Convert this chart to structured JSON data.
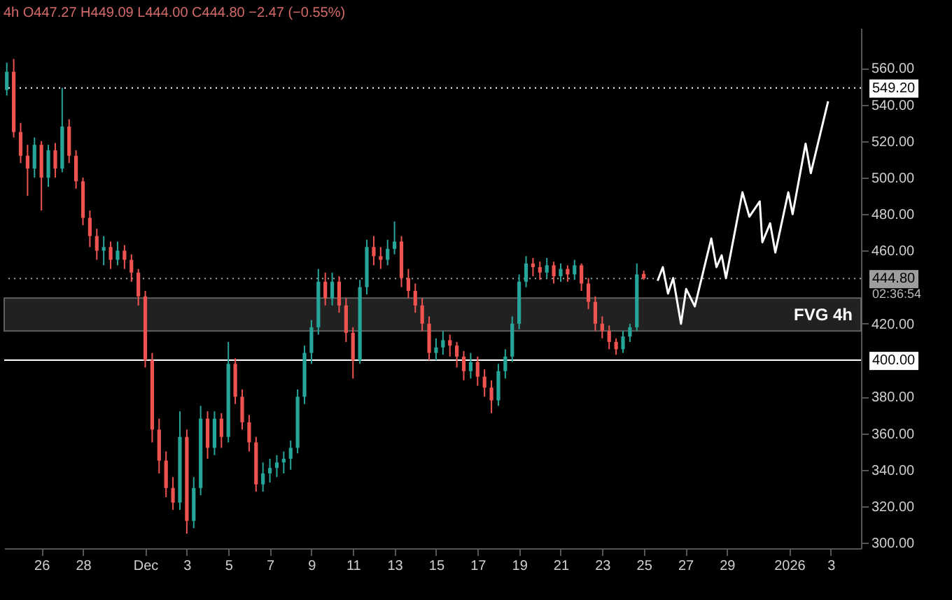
{
  "chart_data": {
    "type": "candlestick",
    "title": "4h O447.27 H449.09 L444.00 C444.80 −2.47 (−0.55%)",
    "x": [
      "2025-11-24T08:00",
      "2025-11-24T16:00",
      "2025-11-25T00:00",
      "2025-11-25T08:00",
      "2025-11-25T16:00",
      "2025-11-26T00:00",
      "2025-11-26T08:00",
      "2025-11-26T16:00",
      "2025-11-27T00:00",
      "2025-11-27T08:00",
      "2025-11-27T16:00",
      "2025-11-28T00:00",
      "2025-11-28T08:00",
      "2025-11-28T16:00",
      "2025-11-29T00:00",
      "2025-11-29T08:00",
      "2025-11-29T16:00",
      "2025-11-30T00:00",
      "2025-11-30T08:00",
      "2025-11-30T16:00",
      "2025-12-01T00:00",
      "2025-12-01T08:00",
      "2025-12-01T16:00",
      "2025-12-02T00:00",
      "2025-12-02T08:00",
      "2025-12-02T16:00",
      "2025-12-03T00:00",
      "2025-12-03T08:00",
      "2025-12-03T16:00",
      "2025-12-04T00:00",
      "2025-12-04T08:00",
      "2025-12-04T16:00",
      "2025-12-05T00:00",
      "2025-12-05T08:00",
      "2025-12-05T16:00",
      "2025-12-06T00:00",
      "2025-12-06T08:00",
      "2025-12-06T16:00",
      "2025-12-07T00:00",
      "2025-12-07T08:00",
      "2025-12-07T16:00",
      "2025-12-08T00:00",
      "2025-12-08T08:00",
      "2025-12-08T16:00",
      "2025-12-09T00:00",
      "2025-12-09T08:00",
      "2025-12-09T16:00",
      "2025-12-10T00:00",
      "2025-12-10T08:00",
      "2025-12-10T16:00",
      "2025-12-11T00:00",
      "2025-12-11T08:00",
      "2025-12-11T16:00",
      "2025-12-12T00:00",
      "2025-12-12T08:00",
      "2025-12-12T16:00",
      "2025-12-13T00:00",
      "2025-12-13T08:00",
      "2025-12-13T16:00",
      "2025-12-14T00:00",
      "2025-12-14T08:00",
      "2025-12-14T16:00",
      "2025-12-15T00:00",
      "2025-12-15T08:00",
      "2025-12-15T16:00",
      "2025-12-16T00:00",
      "2025-12-16T08:00",
      "2025-12-16T16:00",
      "2025-12-17T00:00",
      "2025-12-17T08:00",
      "2025-12-17T16:00",
      "2025-12-18T00:00",
      "2025-12-18T08:00",
      "2025-12-18T16:00",
      "2025-12-19T00:00",
      "2025-12-19T08:00",
      "2025-12-19T16:00",
      "2025-12-20T00:00",
      "2025-12-20T08:00",
      "2025-12-20T16:00",
      "2025-12-21T00:00",
      "2025-12-21T08:00",
      "2025-12-21T16:00",
      "2025-12-22T00:00",
      "2025-12-22T08:00",
      "2025-12-22T16:00",
      "2025-12-23T00:00",
      "2025-12-23T08:00",
      "2025-12-23T16:00",
      "2025-12-24T00:00",
      "2025-12-24T08:00",
      "2025-12-24T16:00",
      "2025-12-25T00:00"
    ],
    "ohlc": [
      [
        548,
        563,
        545,
        558
      ],
      [
        558,
        565,
        522,
        525
      ],
      [
        525,
        530,
        508,
        512
      ],
      [
        512,
        518,
        490,
        505
      ],
      [
        505,
        522,
        500,
        518
      ],
      [
        518,
        520,
        482,
        500
      ],
      [
        500,
        518,
        495,
        515
      ],
      [
        515,
        519,
        500,
        505
      ],
      [
        505,
        549.2,
        503,
        528
      ],
      [
        528,
        532,
        508,
        512
      ],
      [
        512,
        515,
        494,
        498
      ],
      [
        498,
        500,
        474,
        478
      ],
      [
        478,
        482,
        462,
        468
      ],
      [
        468,
        472,
        455,
        460
      ],
      [
        460,
        468,
        452,
        462
      ],
      [
        462,
        465,
        450,
        455
      ],
      [
        455,
        465,
        452,
        460
      ],
      [
        460,
        463,
        450,
        455
      ],
      [
        455,
        458,
        443,
        448
      ],
      [
        448,
        450,
        430,
        435
      ],
      [
        435,
        438,
        396,
        400
      ],
      [
        400,
        404,
        355,
        362
      ],
      [
        362,
        368,
        338,
        345
      ],
      [
        345,
        350,
        325,
        330
      ],
      [
        330,
        336,
        318,
        322
      ],
      [
        322,
        372,
        318,
        358
      ],
      [
        358,
        362,
        305,
        312
      ],
      [
        312,
        336,
        308,
        330
      ],
      [
        330,
        375,
        326,
        368
      ],
      [
        368,
        372,
        346,
        352
      ],
      [
        352,
        372,
        348,
        368
      ],
      [
        368,
        371,
        352,
        358
      ],
      [
        358,
        410,
        355,
        398
      ],
      [
        398,
        401,
        376,
        380
      ],
      [
        380,
        384,
        362,
        366
      ],
      [
        366,
        370,
        350,
        355
      ],
      [
        355,
        358,
        328,
        332
      ],
      [
        332,
        344,
        328,
        338
      ],
      [
        338,
        346,
        333,
        341
      ],
      [
        341,
        348,
        336,
        344
      ],
      [
        344,
        350,
        338,
        346
      ],
      [
        346,
        356,
        340,
        352
      ],
      [
        352,
        384,
        349,
        380
      ],
      [
        380,
        408,
        376,
        404
      ],
      [
        404,
        422,
        398,
        418
      ],
      [
        418,
        450,
        414,
        443
      ],
      [
        443,
        448,
        430,
        434
      ],
      [
        434,
        448,
        430,
        443
      ],
      [
        443,
        446,
        426,
        430
      ],
      [
        430,
        434,
        410,
        415
      ],
      [
        415,
        418,
        390,
        400
      ],
      [
        400,
        444,
        398,
        440
      ],
      [
        440,
        466,
        436,
        462
      ],
      [
        462,
        468,
        452,
        457
      ],
      [
        457,
        462,
        450,
        455
      ],
      [
        455,
        466,
        452,
        461
      ],
      [
        461,
        476,
        458,
        465
      ],
      [
        465,
        468,
        440,
        445
      ],
      [
        445,
        450,
        434,
        438
      ],
      [
        438,
        442,
        426,
        430
      ],
      [
        430,
        434,
        416,
        420
      ],
      [
        420,
        424,
        400,
        404
      ],
      [
        404,
        412,
        400,
        407
      ],
      [
        407,
        416,
        403,
        411
      ],
      [
        411,
        414,
        402,
        408
      ],
      [
        408,
        410,
        396,
        402
      ],
      [
        402,
        405,
        389,
        394
      ],
      [
        394,
        404,
        390,
        399
      ],
      [
        399,
        402,
        386,
        391
      ],
      [
        391,
        395,
        380,
        385
      ],
      [
        385,
        389,
        371,
        378
      ],
      [
        378,
        398,
        375,
        394
      ],
      [
        394,
        406,
        390,
        402
      ],
      [
        402,
        424,
        399,
        420
      ],
      [
        420,
        447,
        417,
        443
      ],
      [
        443,
        457,
        440,
        453
      ],
      [
        453,
        456,
        446,
        451
      ],
      [
        451,
        454,
        444,
        448
      ],
      [
        448,
        456,
        445,
        452
      ],
      [
        452,
        454,
        442,
        446
      ],
      [
        446,
        453,
        443,
        450
      ],
      [
        450,
        452,
        443,
        447
      ],
      [
        447,
        455,
        444,
        452
      ],
      [
        452,
        453,
        438,
        442
      ],
      [
        442,
        445,
        428,
        432
      ],
      [
        432,
        435,
        416,
        420
      ],
      [
        420,
        424,
        412,
        416
      ],
      [
        416,
        419,
        406,
        410
      ],
      [
        410,
        412,
        403,
        406
      ],
      [
        406,
        416,
        404,
        413
      ],
      [
        413,
        420,
        410,
        418
      ],
      [
        418,
        453,
        416,
        447
      ],
      [
        447.27,
        449.09,
        444,
        444.8
      ]
    ],
    "series": [
      {
        "type": "line",
        "color": "#ffffff",
        "x": [
          "2025-12-25T16:00",
          "2025-12-25T22:00",
          "2025-12-26T04:00",
          "2025-12-26T10:00",
          "2025-12-26T19:00",
          "2025-12-27T01:00",
          "2025-12-27T11:00",
          "2025-12-28T06:00",
          "2025-12-28T12:00",
          "2025-12-28T18:00",
          "2025-12-28T23:00",
          "2025-12-29T18:00",
          "2025-12-30T02:00",
          "2025-12-30T14:00",
          "2025-12-30T17:00",
          "2025-12-31T02:00",
          "2025-12-31T08:00",
          "2025-12-31T23:00",
          "2026-01-01T04:00",
          "2026-01-01T19:00",
          "2026-01-02T01:00",
          "2026-01-02T21:00"
        ],
        "values": [
          443.5,
          451,
          436.5,
          445,
          420,
          439,
          429.5,
          466.7,
          451,
          457.5,
          445,
          492,
          478.6,
          487,
          464.6,
          475,
          459,
          492,
          480,
          518.6,
          502.5,
          541.8
        ]
      }
    ],
    "xlim": [
      "2025-11-24T05:00",
      "2026-01-04T11:00"
    ],
    "xticks": [
      {
        "value": "2025-11-26",
        "label": "26"
      },
      {
        "value": "2025-11-28",
        "label": "28"
      },
      {
        "value": "2025-12-01",
        "label": "Dec"
      },
      {
        "value": "2025-12-03",
        "label": "3"
      },
      {
        "value": "2025-12-05",
        "label": "5"
      },
      {
        "value": "2025-12-07",
        "label": "7"
      },
      {
        "value": "2025-12-09",
        "label": "9"
      },
      {
        "value": "2025-12-11",
        "label": "11"
      },
      {
        "value": "2025-12-13",
        "label": "13"
      },
      {
        "value": "2025-12-15",
        "label": "15"
      },
      {
        "value": "2025-12-17",
        "label": "17"
      },
      {
        "value": "2025-12-19",
        "label": "19"
      },
      {
        "value": "2025-12-21",
        "label": "21"
      },
      {
        "value": "2025-12-23",
        "label": "23"
      },
      {
        "value": "2025-12-25",
        "label": "25"
      },
      {
        "value": "2025-12-27",
        "label": "27"
      },
      {
        "value": "2025-12-29",
        "label": "29"
      },
      {
        "value": "2026-01-01",
        "label": "2026"
      },
      {
        "value": "2026-01-03",
        "label": "3"
      }
    ],
    "ylim": [
      297,
      582
    ],
    "yticks": [
      {
        "value": 300,
        "label": "300.00"
      },
      {
        "value": 320,
        "label": "320.00"
      },
      {
        "value": 340,
        "label": "340.00"
      },
      {
        "value": 360,
        "label": "360.00"
      },
      {
        "value": 380,
        "label": "380.00"
      },
      {
        "value": 420,
        "label": "420.00"
      },
      {
        "value": 460,
        "label": "460.00"
      },
      {
        "value": 480,
        "label": "480.00"
      },
      {
        "value": 500,
        "label": "500.00"
      },
      {
        "value": 520,
        "label": "520.00"
      },
      {
        "value": 540,
        "label": "540.00"
      },
      {
        "value": 560,
        "label": "560.00"
      }
    ],
    "ref_lines": [
      {
        "axis": "y",
        "value": 549.2,
        "label": "549.20",
        "color": "#ffffff",
        "line_style": "dotted"
      },
      {
        "axis": "y",
        "value": 400,
        "label": "400.00",
        "color": "#ffffff",
        "line_style": "solid"
      },
      {
        "axis": "y",
        "value": 444.8,
        "label": "444.80",
        "color": "#9e9e9e",
        "line_style": "dotted"
      }
    ],
    "bands": [
      {
        "axis": "y",
        "from": 416,
        "to": 434,
        "label": "FVG 4h",
        "color": "#2a2a2a"
      }
    ],
    "annotations": [
      "02:36:54"
    ]
  }
}
